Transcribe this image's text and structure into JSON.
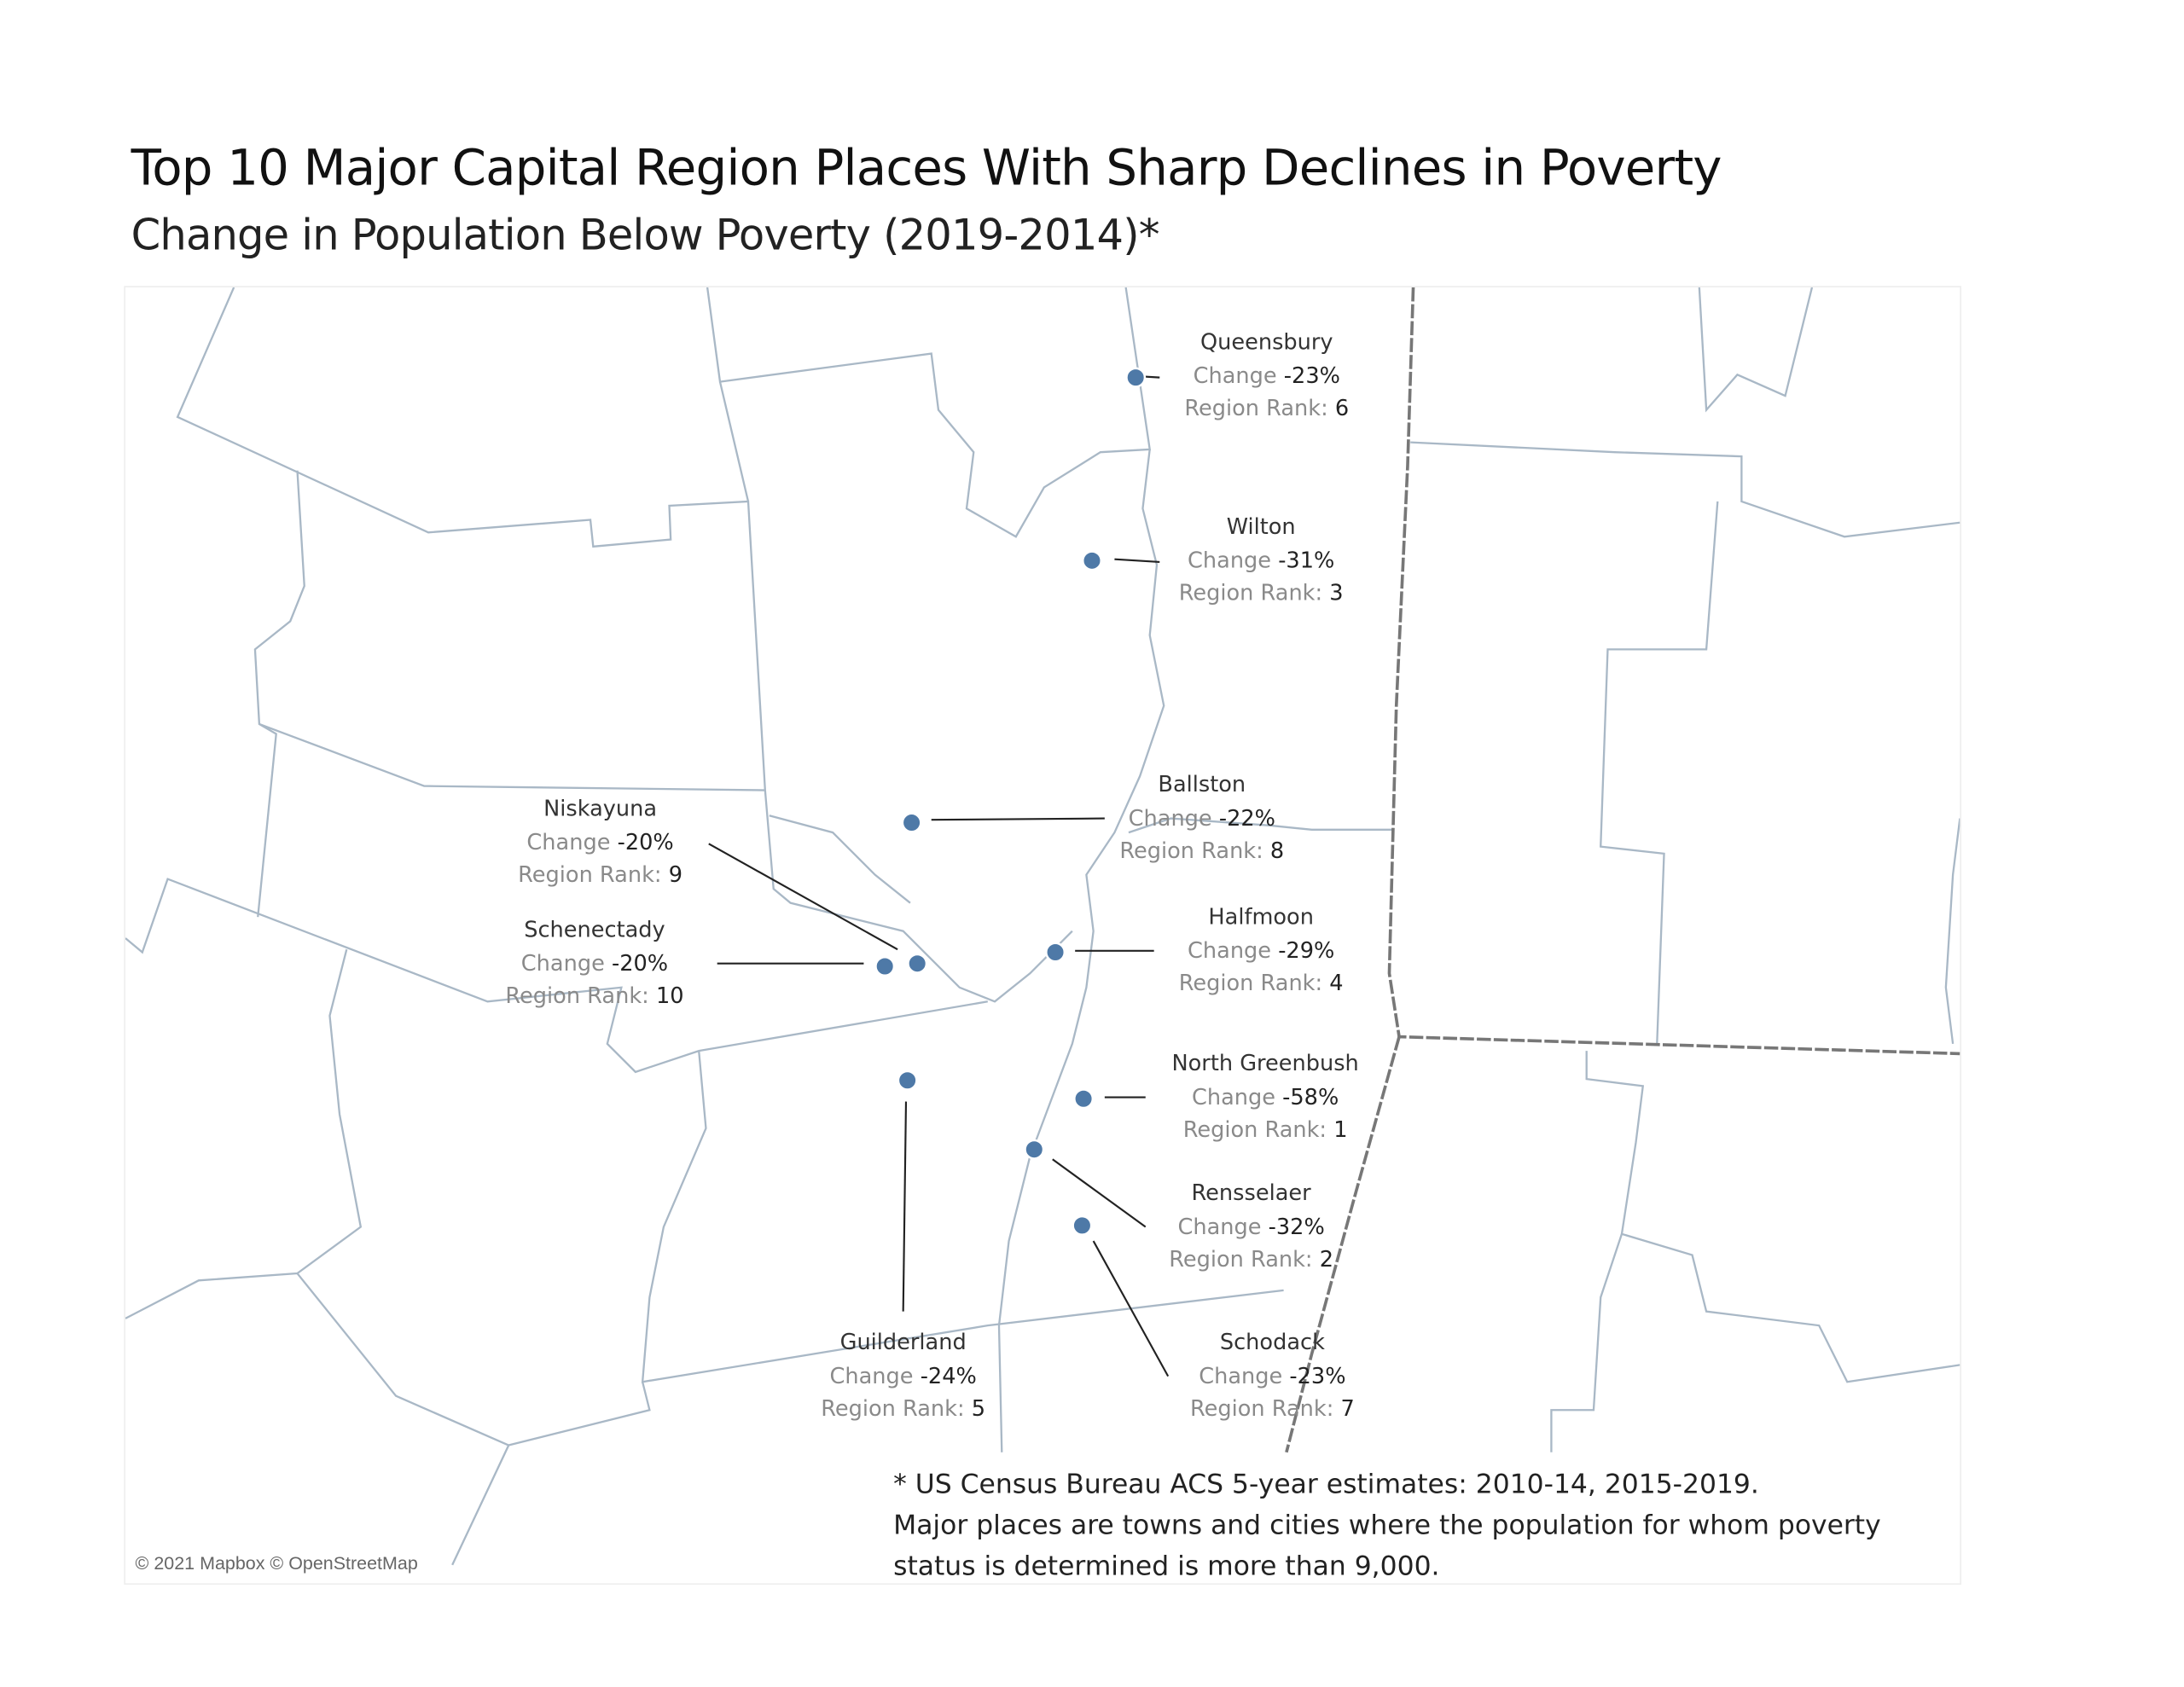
{
  "title": "Top 10 Major Capital Region Places With Sharp Declines in Poverty",
  "subtitle": "Change in Population Below Poverty (2019-2014)*",
  "change_label": "Change",
  "rank_label": "Region Rank:",
  "marker_color": "#4e79a7",
  "places": [
    {
      "name": "Queensbury",
      "change": "-23%",
      "rank": "6"
    },
    {
      "name": "Wilton",
      "change": "-31%",
      "rank": "3"
    },
    {
      "name": "Ballston",
      "change": "-22%",
      "rank": "8"
    },
    {
      "name": "Niskayuna",
      "change": "-20%",
      "rank": "9"
    },
    {
      "name": "Schenectady",
      "change": "-20%",
      "rank": "10"
    },
    {
      "name": "Halfmoon",
      "change": "-29%",
      "rank": "4"
    },
    {
      "name": "North Greenbush",
      "change": "-58%",
      "rank": "1"
    },
    {
      "name": "Rensselaer",
      "change": "-32%",
      "rank": "2"
    },
    {
      "name": "Guilderland",
      "change": "-24%",
      "rank": "5"
    },
    {
      "name": "Schodack",
      "change": "-23%",
      "rank": "7"
    }
  ],
  "attribution": "© 2021 Mapbox © OpenStreetMap",
  "notes": [
    "* US Census Bureau ACS 5-year estimates: 2010-14, 2015-2019.",
    "Major places are towns and cities where the population for whom poverty",
    "status is determined is more than 9,000."
  ]
}
